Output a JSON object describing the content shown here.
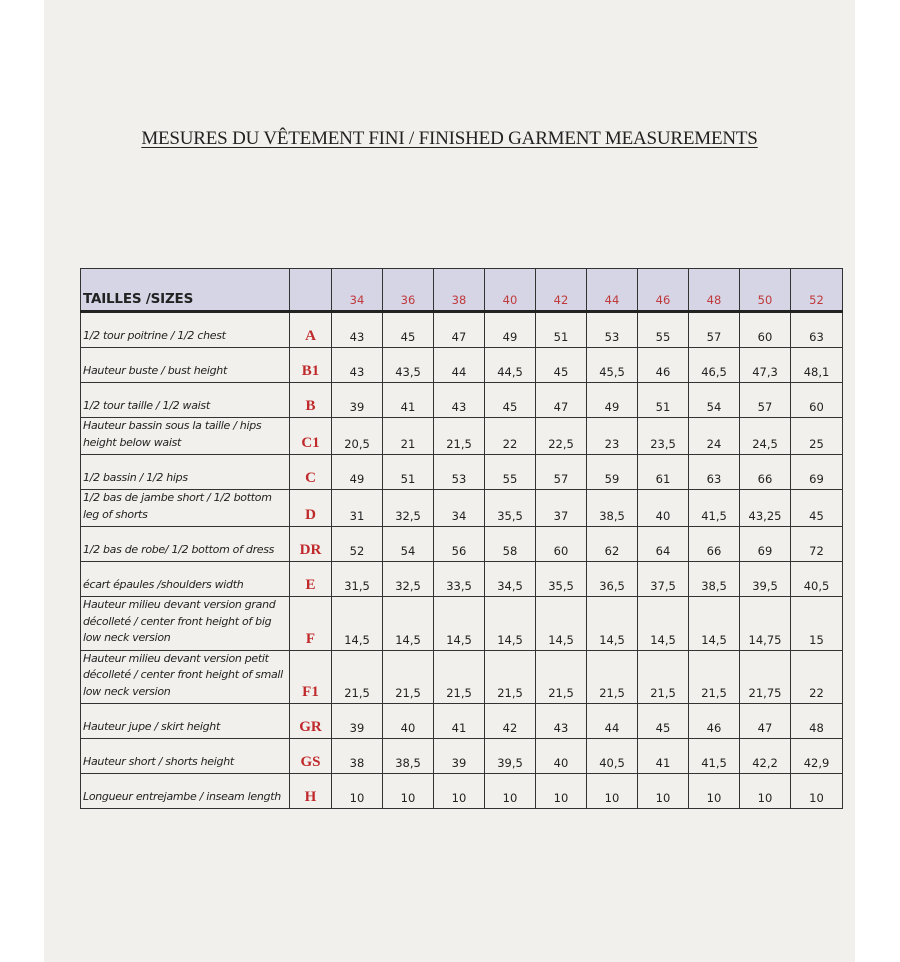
{
  "title": "MESURES DU VÊTEMENT FINI / FINISHED GARMENT MEASUREMENTS",
  "colors": {
    "header_bg": "#d5d5e6",
    "size_text": "#c0393b",
    "code_text": "#c0292b",
    "page_bg": "#f1f0ec"
  },
  "table": {
    "header_label": "TAILLES /SIZES",
    "sizes": [
      "34",
      "36",
      "38",
      "40",
      "42",
      "44",
      "46",
      "48",
      "50",
      "52"
    ],
    "rows": [
      {
        "label": "1/2 tour poitrine / 1/2 chest",
        "code": "A",
        "values": [
          "43",
          "45",
          "47",
          "49",
          "51",
          "53",
          "55",
          "57",
          "60",
          "63"
        ]
      },
      {
        "label": "Hauteur buste / bust height",
        "code": "B1",
        "values": [
          "43",
          "43,5",
          "44",
          "44,5",
          "45",
          "45,5",
          "46",
          "46,5",
          "47,3",
          "48,1"
        ]
      },
      {
        "label": "1/2 tour taille /  1/2 waist",
        "code": "B",
        "values": [
          "39",
          "41",
          "43",
          "45",
          "47",
          "49",
          "51",
          "54",
          "57",
          "60"
        ]
      },
      {
        "label": "Hauteur bassin sous la taille / hips height below waist",
        "code": "C1",
        "values": [
          "20,5",
          "21",
          "21,5",
          "22",
          "22,5",
          "23",
          "23,5",
          "24",
          "24,5",
          "25"
        ]
      },
      {
        "label": "1/2 bassin / 1/2 hips",
        "code": "C",
        "values": [
          "49",
          "51",
          "53",
          "55",
          "57",
          "59",
          "61",
          "63",
          "66",
          "69"
        ]
      },
      {
        "label": "1/2 bas de jambe short / 1/2 bottom leg of shorts",
        "code": "D",
        "values": [
          "31",
          "32,5",
          "34",
          "35,5",
          "37",
          "38,5",
          "40",
          "41,5",
          "43,25",
          "45"
        ]
      },
      {
        "label": "1/2 bas de robe/ 1/2 bottom of dress",
        "code": "DR",
        "values": [
          "52",
          "54",
          "56",
          "58",
          "60",
          "62",
          "64",
          "66",
          "69",
          "72"
        ]
      },
      {
        "label": "écart épaules /shoulders width",
        "code": "E",
        "values": [
          "31,5",
          "32,5",
          "33,5",
          "34,5",
          "35,5",
          "36,5",
          "37,5",
          "38,5",
          "39,5",
          "40,5"
        ]
      },
      {
        "label": "Hauteur  milieu devant version grand décolleté / center front height of big low neck version",
        "code": "F",
        "values": [
          "14,5",
          "14,5",
          "14,5",
          "14,5",
          "14,5",
          "14,5",
          "14,5",
          "14,5",
          "14,75",
          "15"
        ]
      },
      {
        "label": "Hauteur  milieu devant version petit décolleté / center front height of small low neck version",
        "code": "F1",
        "values": [
          "21,5",
          "21,5",
          "21,5",
          "21,5",
          "21,5",
          "21,5",
          "21,5",
          "21,5",
          "21,75",
          "22"
        ]
      },
      {
        "label": "Hauteur jupe / skirt height",
        "code": "GR",
        "values": [
          "39",
          "40",
          "41",
          "42",
          "43",
          "44",
          "45",
          "46",
          "47",
          "48"
        ]
      },
      {
        "label": "Hauteur short  / shorts height",
        "code": "GS",
        "values": [
          "38",
          "38,5",
          "39",
          "39,5",
          "40",
          "40,5",
          "41",
          "41,5",
          "42,2",
          "42,9"
        ]
      },
      {
        "label": "Longueur entrejambe  / inseam length",
        "code": "H",
        "values": [
          "10",
          "10",
          "10",
          "10",
          "10",
          "10",
          "10",
          "10",
          "10",
          "10"
        ]
      }
    ]
  }
}
